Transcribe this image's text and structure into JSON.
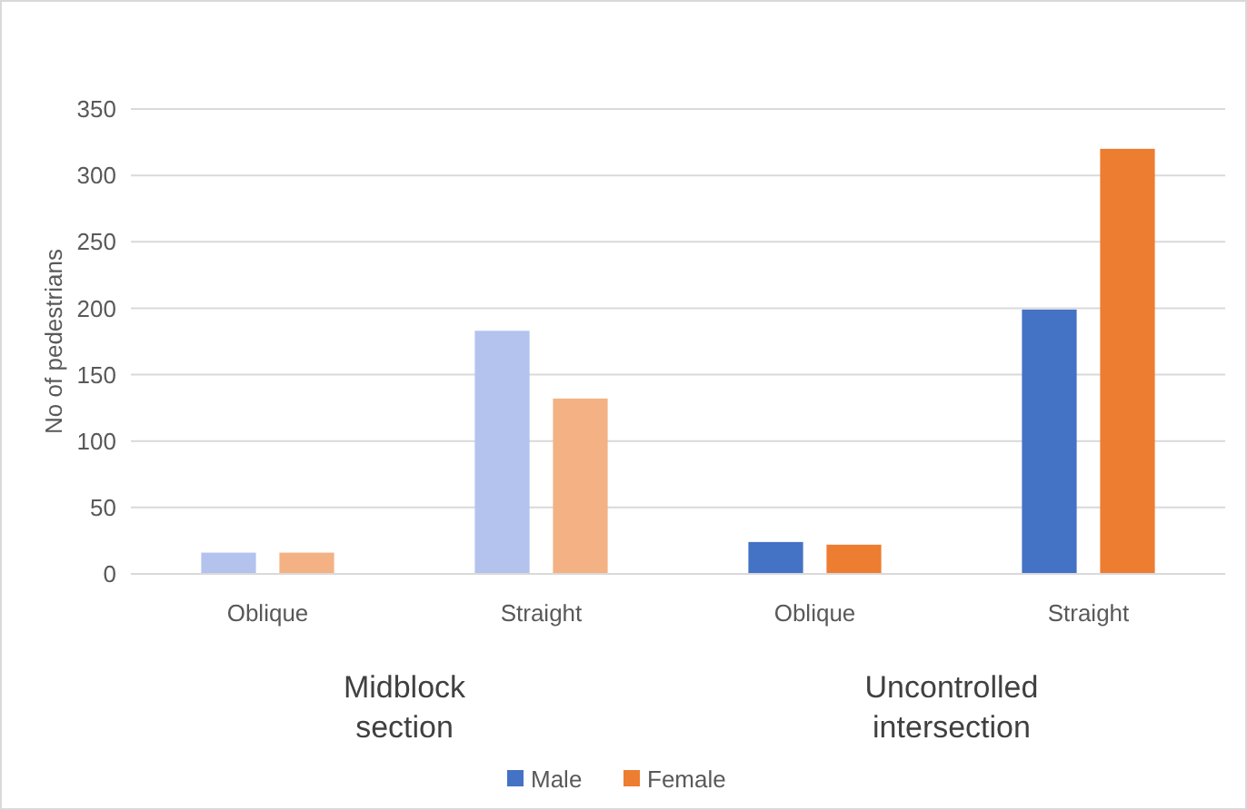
{
  "chart_data": {
    "type": "bar",
    "ylabel": "No of pedestrians",
    "categories": [
      "Oblique",
      "Straight",
      "Oblique",
      "Straight"
    ],
    "series": [
      {
        "name": "Male",
        "color": "#4472c4",
        "colors": [
          "#b4c2ee",
          "#b4c2ee",
          "#4472c4",
          "#4472c4"
        ],
        "values": [
          16,
          183,
          24,
          199
        ]
      },
      {
        "name": "Female",
        "color": "#ed7d31",
        "colors": [
          "#f4b183",
          "#f4b183",
          "#ed7d31",
          "#ed7d31"
        ],
        "values": [
          16,
          132,
          22,
          320
        ]
      }
    ],
    "annotations": [
      "Midblock section",
      "Uncontrolled intersection"
    ],
    "ylim": [
      0,
      350
    ],
    "yticks": [
      0,
      50,
      100,
      150,
      200,
      250,
      300,
      350
    ],
    "grid": "y",
    "legend": "bottom"
  }
}
